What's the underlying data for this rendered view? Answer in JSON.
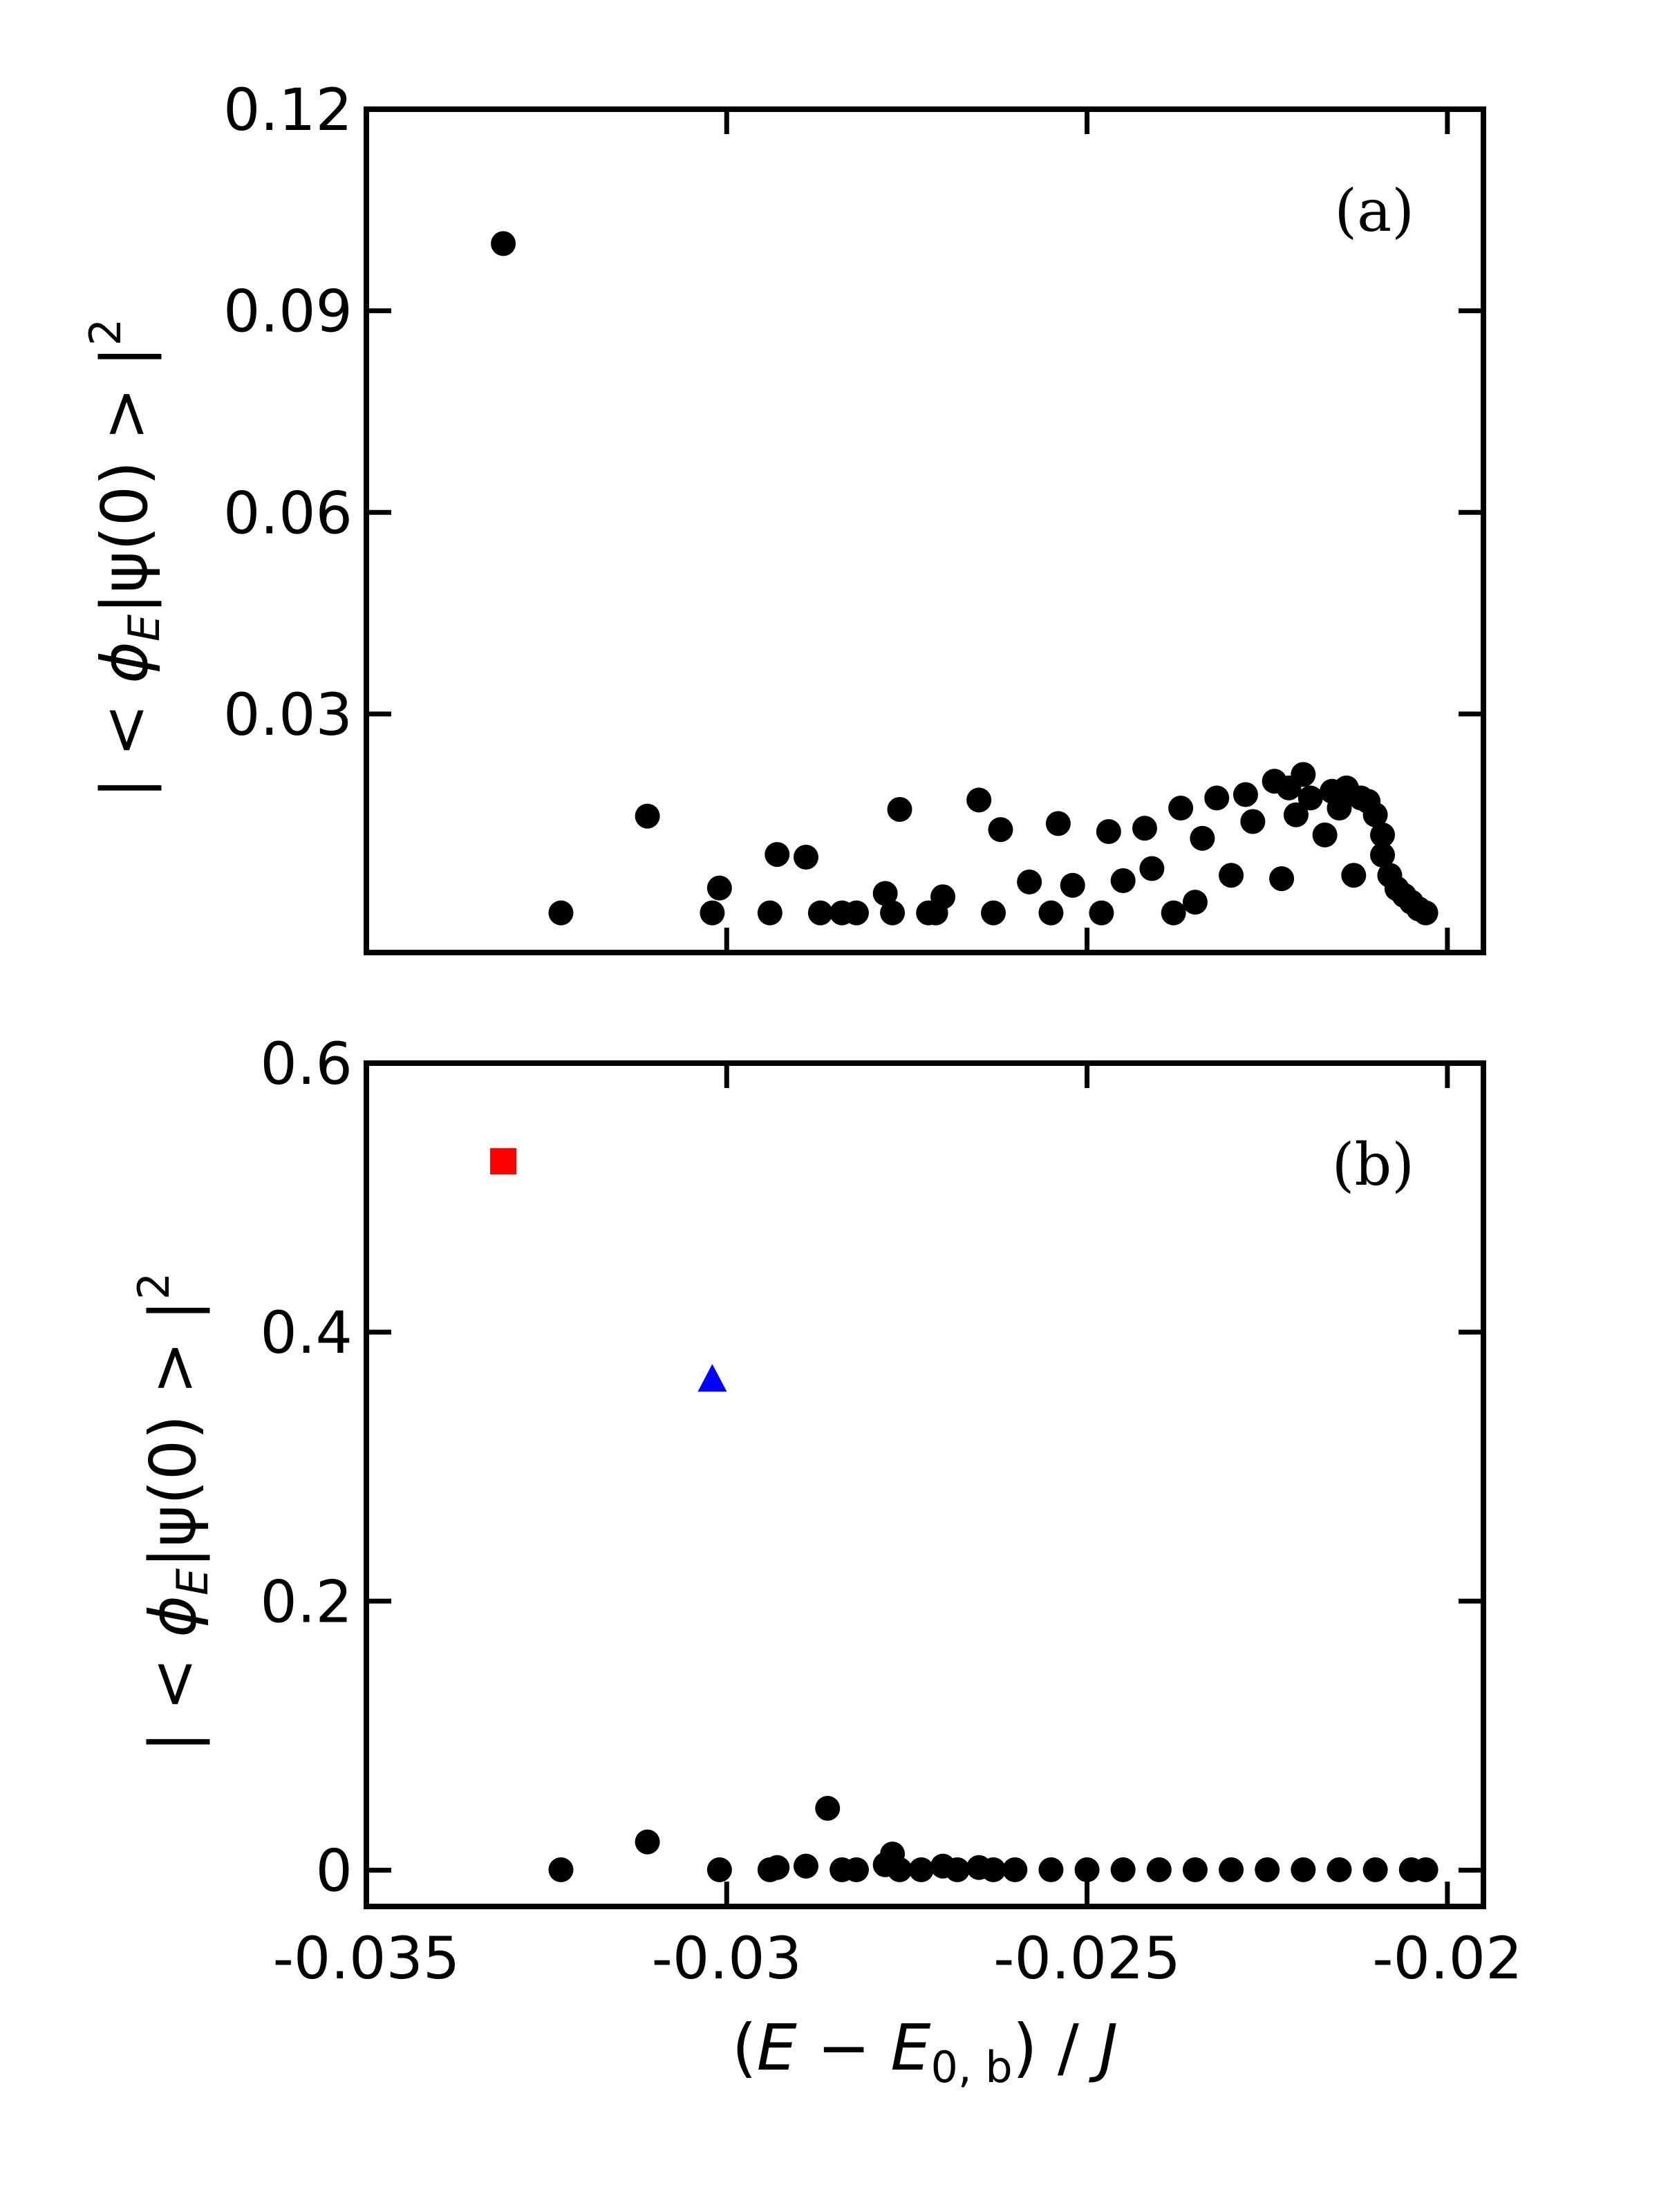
{
  "chart_data": [
    {
      "type": "scatter",
      "panel_label": "(a)",
      "ylabel": "| < ϕ_E|ψ(0) > |²",
      "ylabel_parts": {
        "pre": "| < ",
        "phi": "ϕ",
        "sub": "E",
        "mid": "|ψ(0) > |",
        "sup": "2"
      },
      "xlim": [
        -0.035,
        -0.0195
      ],
      "ylim": [
        -0.0055,
        0.12
      ],
      "yticks": [
        0.03,
        0.06,
        0.09,
        0.12
      ],
      "ytick_labels": [
        "0.03",
        "0.06",
        "0.09",
        "0.12"
      ],
      "xticks": [
        -0.035,
        -0.03,
        -0.025,
        -0.02
      ],
      "grid": false,
      "series": [
        {
          "marker": "circle",
          "color": "#000000",
          "x": [
            -0.0331,
            -0.0323,
            -0.0311,
            -0.0302,
            -0.0301,
            -0.0294,
            -0.0293,
            -0.0289,
            -0.0287,
            -0.0284,
            -0.0282,
            -0.0278,
            -0.0277,
            -0.0276,
            -0.0272,
            -0.0271,
            -0.027,
            -0.0265,
            -0.0263,
            -0.0262,
            -0.0258,
            -0.0255,
            -0.0254,
            -0.0252,
            -0.0248,
            -0.0247,
            -0.0245,
            -0.0242,
            -0.0241,
            -0.0238,
            -0.0237,
            -0.0235,
            -0.0234,
            -0.0232,
            -0.023,
            -0.0228,
            -0.0227,
            -0.0224,
            -0.0223,
            -0.0222,
            -0.0221,
            -0.022,
            -0.0219,
            -0.0217,
            -0.0216,
            -0.0215,
            -0.0214,
            -0.0213,
            -0.0212,
            -0.0211,
            -0.021,
            -0.0209,
            -0.0209,
            -0.0208,
            -0.0207,
            -0.0206,
            -0.0205,
            -0.0204,
            -0.0203
          ],
          "y": [
            0.1,
            0.0004,
            0.0148,
            0.0004,
            0.0041,
            0.0004,
            0.0091,
            0.0087,
            0.0004,
            0.0004,
            0.0004,
            0.0033,
            0.0004,
            0.0158,
            0.0004,
            0.0004,
            0.0028,
            0.0172,
            0.0004,
            0.0128,
            0.005,
            0.0004,
            0.0137,
            0.0045,
            0.0004,
            0.0125,
            0.0052,
            0.013,
            0.007,
            0.0004,
            0.016,
            0.002,
            0.0115,
            0.0175,
            0.006,
            0.018,
            0.014,
            0.02,
            0.0055,
            0.019,
            0.015,
            0.021,
            0.0175,
            0.012,
            0.0185,
            0.016,
            0.019,
            0.006,
            0.0175,
            0.017,
            0.015,
            0.009,
            0.012,
            0.006,
            0.004,
            0.003,
            0.002,
            0.001,
            0.0004
          ]
        }
      ]
    },
    {
      "type": "scatter",
      "panel_label": "(b)",
      "xlabel": "(E − E₀,b) / J",
      "xlabel_parts": {
        "pre": "(",
        "e1": "E",
        "op": " − ",
        "e2": "E",
        "sub": "0, b",
        "post": ") / ",
        "j": "J"
      },
      "ylabel": "| < ϕ_E|ψ(0) > |²",
      "ylabel_parts": {
        "pre": "| < ",
        "phi": "ϕ",
        "sub": "E",
        "mid": "|ψ(0) > |",
        "sup": "2"
      },
      "xlim": [
        -0.035,
        -0.0195
      ],
      "ylim": [
        -0.027,
        0.6
      ],
      "yticks": [
        0,
        0.2,
        0.4,
        0.6
      ],
      "ytick_labels": [
        "0",
        "0.2",
        "0.4",
        "0.6"
      ],
      "xticks": [
        -0.035,
        -0.03,
        -0.025,
        -0.02
      ],
      "xtick_labels": [
        "-0.035",
        "-0.03",
        "-0.025",
        "-0.02"
      ],
      "grid": false,
      "series": [
        {
          "marker": "square",
          "color": "#ff0000",
          "x": [
            -0.0331
          ],
          "y": [
            0.527
          ]
        },
        {
          "marker": "triangle",
          "color": "#0000ff",
          "x": [
            -0.0302
          ],
          "y": [
            0.365
          ]
        },
        {
          "marker": "circle",
          "color": "#000000",
          "x": [
            -0.0323,
            -0.0311,
            -0.0301,
            -0.0294,
            -0.0293,
            -0.0289,
            -0.0286,
            -0.0284,
            -0.0282,
            -0.0278,
            -0.0277,
            -0.0276,
            -0.0273,
            -0.027,
            -0.0268,
            -0.0265,
            -0.0263,
            -0.026,
            -0.0255,
            -0.025,
            -0.0245,
            -0.024,
            -0.0235,
            -0.023,
            -0.0225,
            -0.022,
            -0.0215,
            -0.021,
            -0.0205,
            -0.0203
          ],
          "y": [
            0.0003,
            0.021,
            0.0003,
            0.0003,
            0.002,
            0.003,
            0.046,
            0.0003,
            0.0003,
            0.004,
            0.012,
            0.0003,
            0.0003,
            0.003,
            0.0003,
            0.002,
            0.0003,
            0.0003,
            0.0003,
            0.0003,
            0.0003,
            0.0003,
            0.0003,
            0.0003,
            0.0003,
            0.0003,
            0.0003,
            0.0003,
            0.0003,
            0.0003
          ]
        }
      ]
    }
  ]
}
